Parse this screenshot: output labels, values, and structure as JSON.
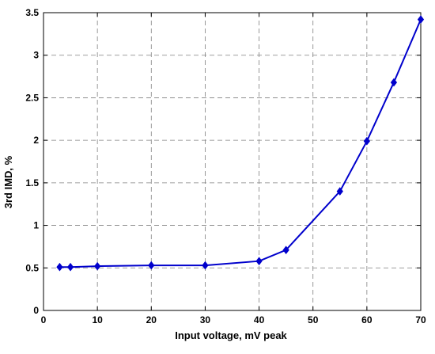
{
  "chart_data": {
    "type": "line",
    "title": "",
    "xlabel": "Input voltage, mV peak",
    "ylabel": "3rd IMD, %",
    "xlim": [
      0,
      70
    ],
    "ylim": [
      0,
      3.5
    ],
    "xticks": [
      "0",
      "10",
      "20",
      "30",
      "40",
      "50",
      "60",
      "70"
    ],
    "yticks": [
      "0",
      "0.5",
      "1",
      "1.5",
      "2",
      "2.5",
      "3",
      "3.5"
    ],
    "grid": true,
    "legend": "none",
    "marker": "diamond",
    "series_color": "#0000cc",
    "series": [
      {
        "x": [
          3,
          5,
          10,
          20,
          30,
          40,
          45,
          55,
          60,
          65,
          70
        ],
        "y": [
          0.51,
          0.51,
          0.52,
          0.53,
          0.53,
          0.58,
          0.71,
          1.4,
          1.99,
          2.68,
          3.42
        ]
      }
    ]
  }
}
